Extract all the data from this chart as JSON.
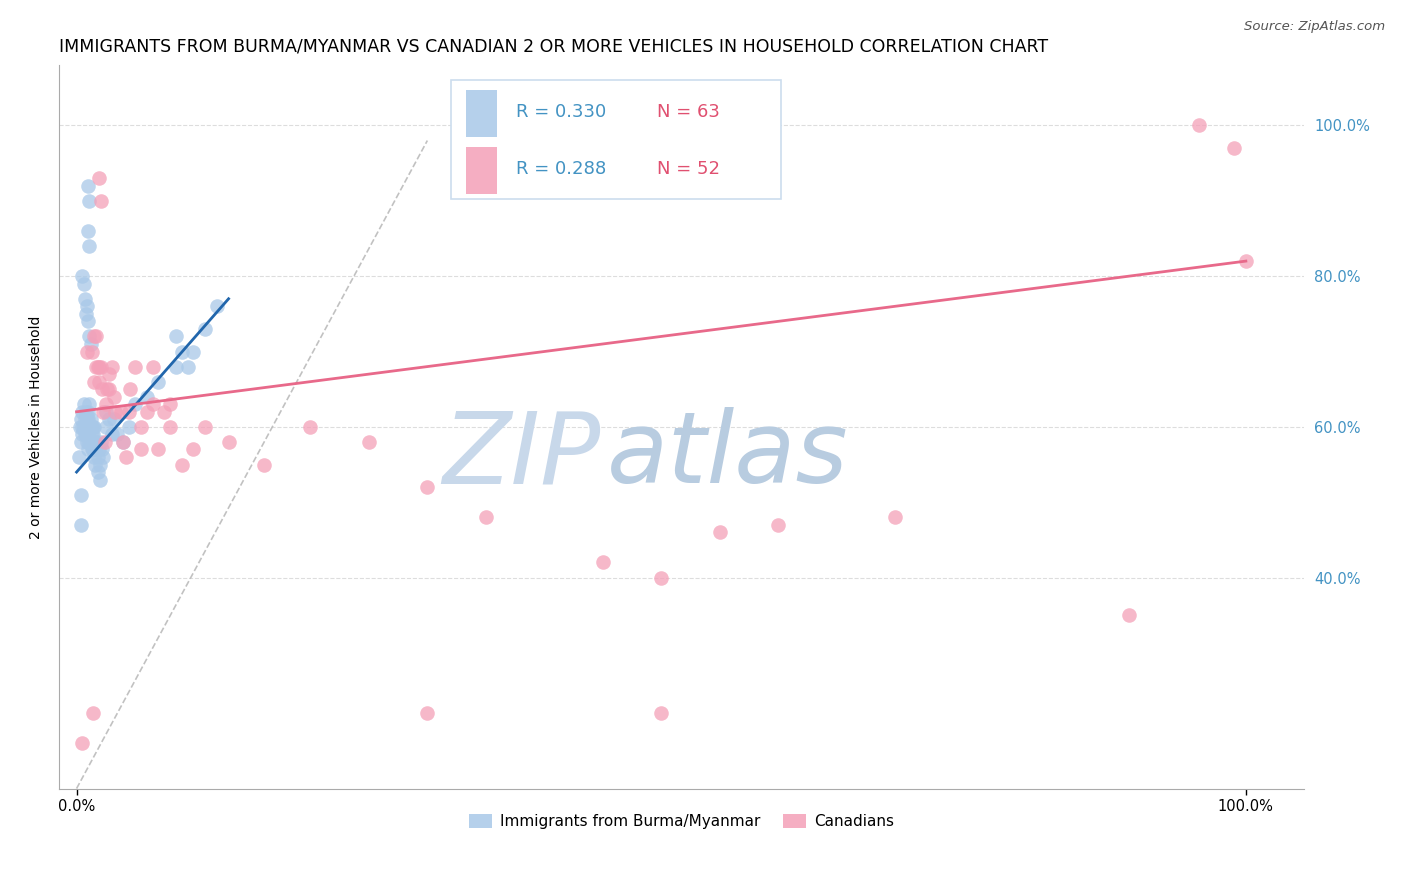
{
  "title": "IMMIGRANTS FROM BURMA/MYANMAR VS CANADIAN 2 OR MORE VEHICLES IN HOUSEHOLD CORRELATION CHART",
  "source": "Source: ZipAtlas.com",
  "ylabel": "2 or more Vehicles in Household",
  "legend_blue_r": "R = 0.330",
  "legend_blue_n": "N = 63",
  "legend_pink_r": "R = 0.288",
  "legend_pink_n": "N = 52",
  "legend_blue_label": "Immigrants from Burma/Myanmar",
  "legend_pink_label": "Canadians",
  "blue_color": "#a8c8e8",
  "pink_color": "#f4a0b8",
  "blue_line_color": "#2166ac",
  "pink_line_color": "#e8698a",
  "r_text_color": "#4393c3",
  "n_text_color": "#e05070",
  "right_tick_color": "#4393c3",
  "watermark_zip_color": "#c8d8ea",
  "watermark_atlas_color": "#b8cce0",
  "grid_color": "#dddddd",
  "diag_color": "#bbbbbb",
  "title_fontsize": 12.5,
  "axis_label_fontsize": 10,
  "tick_label_fontsize": 10.5,
  "legend_fontsize": 13,
  "source_fontsize": 9.5,
  "blue_x": [
    0.002,
    0.003,
    0.004,
    0.004,
    0.005,
    0.005,
    0.005,
    0.006,
    0.006,
    0.007,
    0.007,
    0.008,
    0.008,
    0.008,
    0.009,
    0.009,
    0.009,
    0.01,
    0.01,
    0.01,
    0.01,
    0.01,
    0.011,
    0.011,
    0.011,
    0.012,
    0.012,
    0.012,
    0.013,
    0.013,
    0.013,
    0.014,
    0.014,
    0.014,
    0.015,
    0.015,
    0.015,
    0.016,
    0.016,
    0.017,
    0.018,
    0.018,
    0.019,
    0.02,
    0.02,
    0.021,
    0.022,
    0.023,
    0.025,
    0.025,
    0.028,
    0.03,
    0.032,
    0.035,
    0.04,
    0.045,
    0.05,
    0.06,
    0.07,
    0.085,
    0.1,
    0.11,
    0.12
  ],
  "blue_y": [
    0.56,
    0.6,
    0.61,
    0.58,
    0.62,
    0.6,
    0.59,
    0.63,
    0.6,
    0.61,
    0.59,
    0.6,
    0.62,
    0.59,
    0.61,
    0.6,
    0.58,
    0.62,
    0.61,
    0.6,
    0.59,
    0.57,
    0.63,
    0.6,
    0.58,
    0.61,
    0.6,
    0.58,
    0.6,
    0.59,
    0.57,
    0.6,
    0.59,
    0.57,
    0.6,
    0.58,
    0.56,
    0.57,
    0.55,
    0.58,
    0.56,
    0.54,
    0.57,
    0.55,
    0.53,
    0.58,
    0.57,
    0.56,
    0.62,
    0.6,
    0.61,
    0.59,
    0.61,
    0.59,
    0.58,
    0.6,
    0.63,
    0.64,
    0.66,
    0.68,
    0.7,
    0.73,
    0.76
  ],
  "blue_extra_x": [
    0.01,
    0.011,
    0.01,
    0.011,
    0.004,
    0.004,
    0.085,
    0.09,
    0.095,
    0.005,
    0.006,
    0.007,
    0.008,
    0.009,
    0.01,
    0.011,
    0.012
  ],
  "blue_extra_y": [
    0.92,
    0.9,
    0.86,
    0.84,
    0.51,
    0.47,
    0.72,
    0.7,
    0.68,
    0.8,
    0.79,
    0.77,
    0.75,
    0.76,
    0.74,
    0.72,
    0.71
  ],
  "pink_x": [
    0.005,
    0.009,
    0.013,
    0.015,
    0.017,
    0.017,
    0.019,
    0.019,
    0.021,
    0.023,
    0.024,
    0.026,
    0.028,
    0.03,
    0.033,
    0.038,
    0.042,
    0.046,
    0.05,
    0.055,
    0.06,
    0.065,
    0.07,
    0.075,
    0.08,
    0.09,
    0.1,
    0.11,
    0.13,
    0.16,
    0.2,
    0.25,
    0.3,
    0.35,
    0.45,
    0.5,
    0.55,
    0.6,
    0.7,
    0.9,
    1.0,
    0.015,
    0.018,
    0.022,
    0.025,
    0.028,
    0.032,
    0.04,
    0.045,
    0.055,
    0.065,
    0.08
  ],
  "pink_y": [
    0.18,
    0.7,
    0.7,
    0.72,
    0.68,
    0.72,
    0.68,
    0.66,
    0.68,
    0.62,
    0.58,
    0.65,
    0.65,
    0.68,
    0.62,
    0.62,
    0.56,
    0.65,
    0.68,
    0.57,
    0.62,
    0.68,
    0.57,
    0.62,
    0.63,
    0.55,
    0.57,
    0.6,
    0.58,
    0.55,
    0.6,
    0.58,
    0.52,
    0.48,
    0.42,
    0.4,
    0.46,
    0.47,
    0.48,
    0.35,
    0.82,
    0.66,
    0.68,
    0.65,
    0.63,
    0.67,
    0.64,
    0.58,
    0.62,
    0.6,
    0.63,
    0.6
  ],
  "pink_extra_x": [
    0.019,
    0.021,
    0.014,
    0.3,
    0.5,
    0.96,
    0.99
  ],
  "pink_extra_y": [
    0.93,
    0.9,
    0.22,
    0.22,
    0.22,
    1.0,
    0.97
  ],
  "xlim": [
    -0.015,
    1.05
  ],
  "ylim": [
    0.12,
    1.08
  ],
  "blue_trend": [
    0.0,
    0.13,
    0.54,
    0.77
  ],
  "pink_trend": [
    0.0,
    1.0,
    0.62,
    0.82
  ],
  "diag": [
    0.0,
    0.3,
    0.12,
    0.98
  ]
}
